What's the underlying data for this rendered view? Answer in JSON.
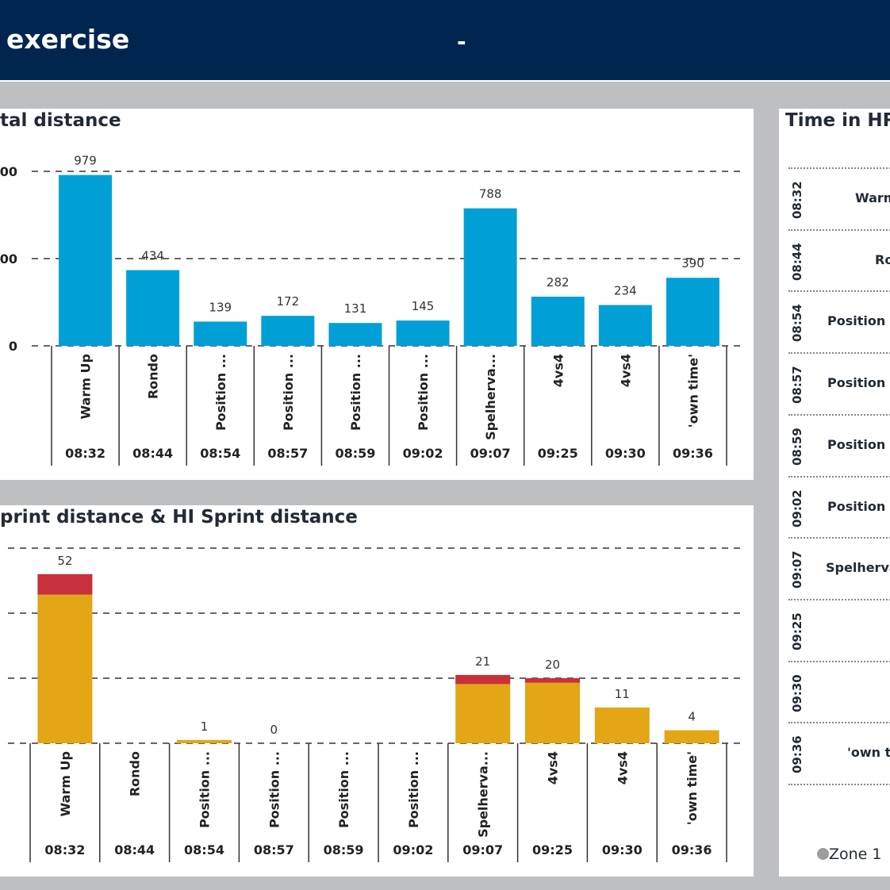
{
  "header": {
    "title": "exercise",
    "separator": "-"
  },
  "colors": {
    "header": "#00264f",
    "total": "#00a0d6",
    "sprint": "#e3a614",
    "hi_sprint": "#c8303b",
    "zone1": "#9e9e9e"
  },
  "chart_data": [
    {
      "type": "bar",
      "title": "tal distance",
      "categories": [
        "Warm Up",
        "Rondo",
        "Position ...",
        "Position ...",
        "Position ...",
        "Position ...",
        "Spelherva...",
        "4vs4",
        "4vs4",
        "'own time'"
      ],
      "times": [
        "08:32",
        "08:44",
        "08:54",
        "08:57",
        "08:59",
        "09:02",
        "09:07",
        "09:25",
        "09:30",
        "09:36"
      ],
      "values": [
        979,
        434,
        139,
        172,
        131,
        145,
        788,
        282,
        234,
        390
      ],
      "yticks": [
        {
          "v": 0,
          "label": "0"
        },
        {
          "v": 500,
          "label": "00"
        },
        {
          "v": 1000,
          "label": "00"
        }
      ],
      "ylim": [
        0,
        1000
      ],
      "grid": true
    },
    {
      "type": "bar",
      "stacked": true,
      "title": "print distance & HI Sprint distance",
      "categories": [
        "Warm Up",
        "Rondo",
        "Position ...",
        "Position ...",
        "Position ...",
        "Position ...",
        "Spelherva...",
        "4vs4",
        "4vs4",
        "'own time'"
      ],
      "times": [
        "08:32",
        "08:44",
        "08:54",
        "08:57",
        "08:59",
        "09:02",
        "09:07",
        "09:25",
        "09:30",
        "09:36"
      ],
      "series": [
        {
          "values": [
            45.7,
            0,
            1,
            0,
            0,
            0,
            18.2,
            18.6,
            11,
            4
          ]
        },
        {
          "values": [
            6.3,
            0,
            0,
            0,
            0,
            0,
            2.8,
            1.4,
            0,
            0
          ]
        }
      ],
      "labels": [
        "52",
        "",
        "1",
        "0",
        "",
        "",
        "21",
        "20",
        "11",
        "4"
      ],
      "ylim": [
        0,
        60
      ],
      "yticks": [
        0,
        20,
        40,
        60
      ],
      "grid": true
    }
  ],
  "hr": {
    "title": "Time in HR",
    "rows": [
      {
        "time": "08:32",
        "label": "Warm"
      },
      {
        "time": "08:44",
        "label": "Ro"
      },
      {
        "time": "08:54",
        "label": "Position"
      },
      {
        "time": "08:57",
        "label": "Position"
      },
      {
        "time": "08:59",
        "label": "Position"
      },
      {
        "time": "09:02",
        "label": "Position"
      },
      {
        "time": "09:07",
        "label": "Spelherva"
      },
      {
        "time": "09:25",
        "label": ""
      },
      {
        "time": "09:30",
        "label": ""
      },
      {
        "time": "09:36",
        "label": "'own t"
      }
    ],
    "legend": "Zone 1"
  }
}
